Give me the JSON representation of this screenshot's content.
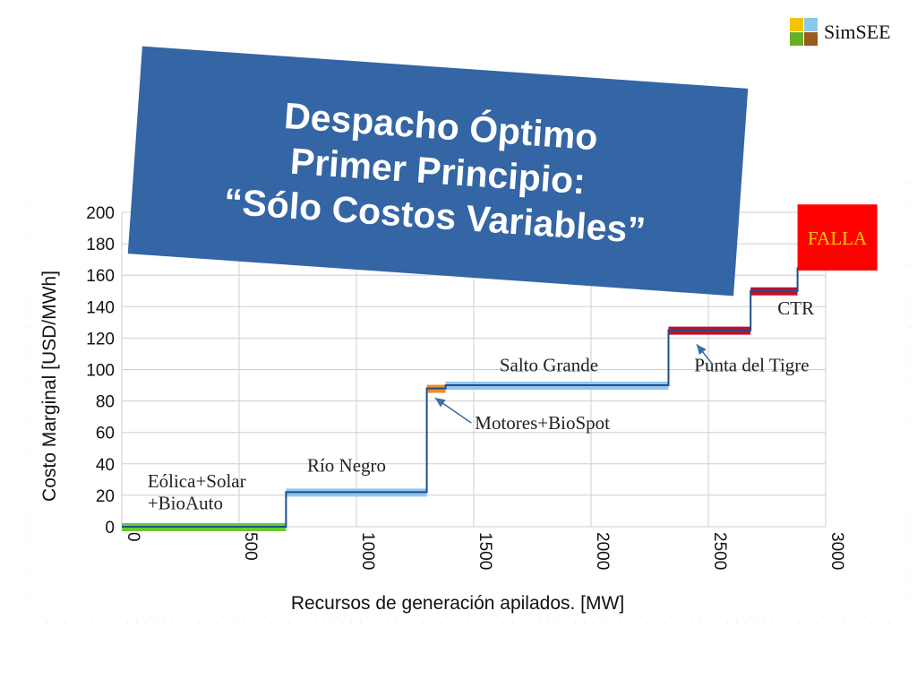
{
  "logo": {
    "name": "SimSEE",
    "colors": [
      "#f2c500",
      "#8cc8e8",
      "#6ab023",
      "#9b5b1e"
    ]
  },
  "banner": {
    "line1": "Despacho Óptimo",
    "line2": "Primer Principio:",
    "line3": "“Sólo Costos Variables”",
    "color": "#3465a4"
  },
  "chart_data": {
    "type": "line",
    "xlabel": "Recursos de generación apilados. [MW]",
    "ylabel": "Costo Marginal [USD/MWh]",
    "xlim": [
      0,
      3000
    ],
    "ylim": [
      0,
      200
    ],
    "xticks": [
      0,
      500,
      1000,
      1500,
      2000,
      2500,
      3000
    ],
    "yticks": [
      0,
      20,
      40,
      60,
      80,
      100,
      120,
      140,
      160,
      180,
      200
    ],
    "grid": true,
    "step_curve": {
      "color": "#1f4e8c",
      "points": [
        [
          0,
          0
        ],
        [
          700,
          0
        ],
        [
          700,
          22
        ],
        [
          1300,
          22
        ],
        [
          1300,
          88
        ],
        [
          1380,
          88
        ],
        [
          1380,
          90
        ],
        [
          2330,
          90
        ],
        [
          2330,
          125
        ],
        [
          2680,
          125
        ],
        [
          2680,
          150
        ],
        [
          2880,
          150
        ],
        [
          2880,
          165
        ]
      ]
    },
    "blocks": [
      {
        "x0": 0,
        "x1": 700,
        "y": 0,
        "color": "#66cc33"
      },
      {
        "x0": 700,
        "x1": 1300,
        "y": 22,
        "color": "#8fc6ee"
      },
      {
        "x0": 1300,
        "x1": 1380,
        "y": 88,
        "color": "#ef8a2a"
      },
      {
        "x0": 1380,
        "x1": 2330,
        "y": 90,
        "color": "#8fc6ee"
      },
      {
        "x0": 2330,
        "x1": 2680,
        "y": 125,
        "color": "#c0102a"
      },
      {
        "x0": 2680,
        "x1": 2880,
        "y": 150,
        "color": "#c0102a"
      }
    ],
    "annotations": [
      {
        "text": "Eólica+Solar",
        "x": 110,
        "y": 25
      },
      {
        "text": "+BioAuto",
        "x": 110,
        "y": 11
      },
      {
        "text": "Río Negro",
        "x": 790,
        "y": 35
      },
      {
        "text": "Salto Grande",
        "x": 1610,
        "y": 99
      },
      {
        "text": "Motores+BioSpot",
        "x": 1505,
        "y": 62
      },
      {
        "text": "Punta del Tigre",
        "x": 2440,
        "y": 99
      },
      {
        "text": "CTR",
        "x": 2795,
        "y": 135
      }
    ],
    "arrows": [
      {
        "from": [
          1490,
          66
        ],
        "to": [
          1335,
          82
        ]
      },
      {
        "from": [
          2520,
          103
        ],
        "to": [
          2450,
          116
        ]
      }
    ],
    "falla": {
      "text": "FALLA",
      "x0": 2880,
      "x1": 3220,
      "y0": 163,
      "y1": 205,
      "fill": "#ff0000",
      "text_color": "#f2d000"
    }
  }
}
